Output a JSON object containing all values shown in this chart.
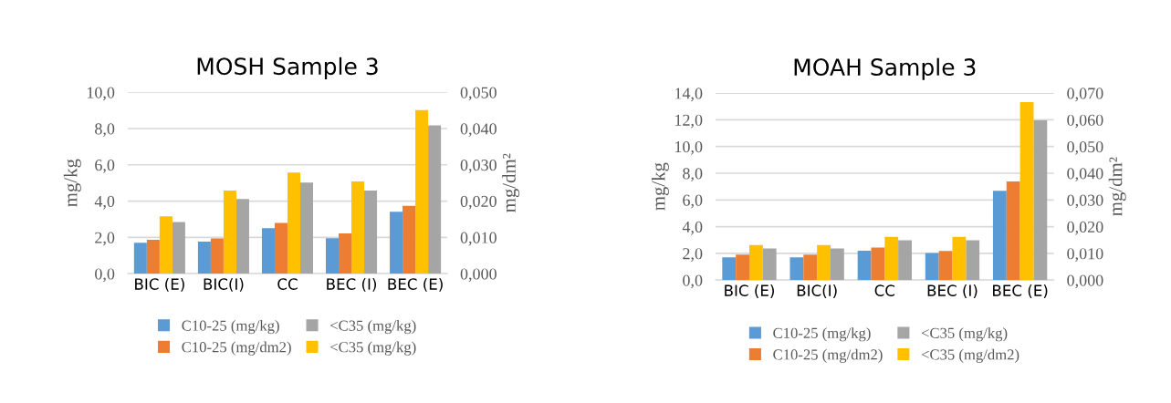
{
  "chart_data": [
    {
      "type": "bar",
      "title": "MOSH Sample 3",
      "ylabel": "mg/kg",
      "y2label": "mg/dm²",
      "categories": [
        "BIC (E)",
        "BIC(I)",
        "CC",
        "BEC (I)",
        "BEC (E)"
      ],
      "series": [
        {
          "name": "C10-25 (mg/kg)",
          "color": "#5b9bd5",
          "values": [
            1.7,
            1.77,
            2.51,
            1.95,
            3.41
          ]
        },
        {
          "name": "<C35 (mg/kg)",
          "color": "#a5a5a5",
          "values": [
            2.85,
            4.12,
            5.02,
            4.58,
            8.17
          ]
        },
        {
          "name": "C10-25 (mg/dm2)",
          "color": "#ed7d31",
          "axis": "y2",
          "values": [
            0.0093,
            0.0097,
            0.014,
            0.0111,
            0.0187
          ]
        },
        {
          "name": "<C35 (mg/kg)",
          "color": "#ffc000",
          "axis": "y2",
          "values": [
            0.0158,
            0.0229,
            0.0279,
            0.0254,
            0.0451
          ]
        }
      ],
      "ylim": [
        0,
        10
      ],
      "yticks": [
        {
          "value": 0,
          "label": "0,0"
        },
        {
          "value": 2,
          "label": "2,0"
        },
        {
          "value": 4,
          "label": "4,0"
        },
        {
          "value": 6,
          "label": "6,0"
        },
        {
          "value": 8,
          "label": "8,0"
        },
        {
          "value": 10,
          "label": "10,0"
        }
      ],
      "y2lim": [
        0,
        0.05
      ],
      "y2ticks": [
        {
          "value": 0,
          "label": "0,000"
        },
        {
          "value": 0.01,
          "label": "0,010"
        },
        {
          "value": 0.02,
          "label": "0,020"
        },
        {
          "value": 0.03,
          "label": "0,030"
        },
        {
          "value": 0.04,
          "label": "0,040"
        },
        {
          "value": 0.05,
          "label": "0,050"
        }
      ],
      "grid": "y",
      "legend": "bottom"
    },
    {
      "type": "bar",
      "title": "MOAH Sample 3",
      "ylabel": "mg/kg",
      "y2label": "mg/dm²",
      "categories": [
        "BIC (E)",
        "BIC(I)",
        "CC",
        "BEC (I)",
        "BEC (E)"
      ],
      "series": [
        {
          "name": "C10-25 (mg/kg)",
          "color": "#5b9bd5",
          "values": [
            1.7,
            1.7,
            2.19,
            2.02,
            6.68
          ]
        },
        {
          "name": "<C35 (mg/kg)",
          "color": "#a5a5a5",
          "values": [
            2.36,
            2.36,
            2.98,
            2.98,
            11.96
          ]
        },
        {
          "name": "C10-25 (mg/dm2)",
          "color": "#ed7d31",
          "axis": "y2",
          "values": [
            0.0095,
            0.0095,
            0.0122,
            0.0109,
            0.0369
          ]
        },
        {
          "name": "<C35 (mg/dm2)",
          "color": "#ffc000",
          "axis": "y2",
          "values": [
            0.0131,
            0.0131,
            0.0162,
            0.0162,
            0.0666
          ]
        }
      ],
      "ylim": [
        0,
        14
      ],
      "yticks": [
        {
          "value": 0,
          "label": "0,0"
        },
        {
          "value": 2,
          "label": "2,0"
        },
        {
          "value": 4,
          "label": "4,0"
        },
        {
          "value": 6,
          "label": "6,0"
        },
        {
          "value": 8,
          "label": "8,0"
        },
        {
          "value": 10,
          "label": "10,0"
        },
        {
          "value": 12,
          "label": "12,0"
        },
        {
          "value": 14,
          "label": "14,0"
        }
      ],
      "y2lim": [
        0,
        0.07
      ],
      "y2ticks": [
        {
          "value": 0,
          "label": "0,000"
        },
        {
          "value": 0.01,
          "label": "0,010"
        },
        {
          "value": 0.02,
          "label": "0,020"
        },
        {
          "value": 0.03,
          "label": "0,030"
        },
        {
          "value": 0.04,
          "label": "0,040"
        },
        {
          "value": 0.05,
          "label": "0,050"
        },
        {
          "value": 0.06,
          "label": "0,060"
        },
        {
          "value": 0.07,
          "label": "0,070"
        }
      ],
      "grid": "y",
      "legend": "bottom"
    }
  ]
}
